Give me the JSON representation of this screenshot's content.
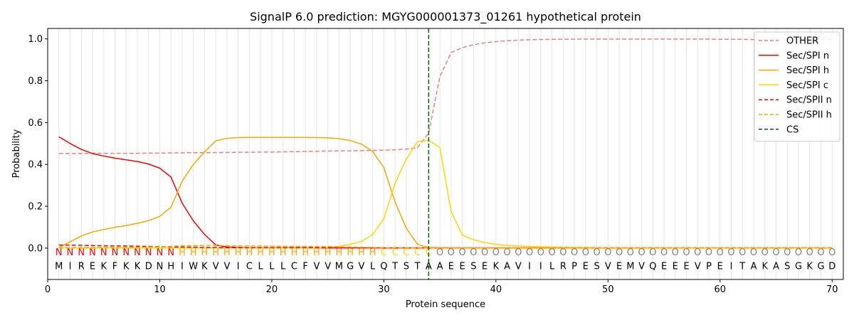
{
  "chart_data": {
    "type": "line",
    "title": "SignalP 6.0 prediction: MGYG000001373_01261 hypothetical protein",
    "xlabel": "Protein sequence",
    "ylabel": "Probability",
    "xlim": [
      0,
      71
    ],
    "ylim": [
      -0.15,
      1.05
    ],
    "grid": "vertical lines at each residue",
    "legend_position": "top-right",
    "x_ticks": [
      0,
      10,
      20,
      30,
      40,
      50,
      60,
      70
    ],
    "y_ticks": [
      0.0,
      0.2,
      0.4,
      0.6,
      0.8,
      1.0
    ],
    "x_tick_labels": [
      "0",
      "10",
      "20",
      "30",
      "40",
      "50",
      "60",
      "70"
    ],
    "y_tick_labels": [
      "0.0",
      "0.2",
      "0.4",
      "0.6",
      "0.8",
      "1.0"
    ],
    "sequence": [
      "M",
      "I",
      "R",
      "E",
      "K",
      "F",
      "K",
      "K",
      "D",
      "N",
      "H",
      "I",
      "W",
      "K",
      "V",
      "V",
      "I",
      "C",
      "L",
      "L",
      "L",
      "C",
      "F",
      "V",
      "V",
      "M",
      "G",
      "V",
      "L",
      "Q",
      "T",
      "S",
      "T",
      "A",
      "A",
      "E",
      "E",
      "S",
      "E",
      "K",
      "A",
      "V",
      "I",
      "I",
      "L",
      "R",
      "P",
      "E",
      "S",
      "V",
      "E",
      "M",
      "V",
      "Q",
      "E",
      "E",
      "E",
      "V",
      "P",
      "E",
      "I",
      "T",
      "A",
      "K",
      "A",
      "S",
      "G",
      "K",
      "G",
      "D"
    ],
    "region_labels": [
      "N",
      "N",
      "N",
      "N",
      "N",
      "N",
      "N",
      "N",
      "N",
      "N",
      "N",
      "H",
      "H",
      "H",
      "H",
      "H",
      "H",
      "H",
      "H",
      "H",
      "H",
      "H",
      "H",
      "H",
      "H",
      "H",
      "H",
      "H",
      "H",
      "C",
      "C",
      "C",
      "C",
      "C",
      "O",
      "O",
      "O",
      "O",
      "O",
      "O",
      "O",
      "O",
      "O",
      "O",
      "O",
      "O",
      "O",
      "O",
      "O",
      "O",
      "O",
      "O",
      "O",
      "O",
      "O",
      "O",
      "O",
      "O",
      "O",
      "O",
      "O",
      "O",
      "O",
      "O",
      "O",
      "O",
      "O",
      "O",
      "O",
      "O"
    ],
    "region_colors": {
      "N": "#ff0000",
      "H": "#ffa500",
      "C": "#ffd700",
      "O": "#808080"
    },
    "cs_position": 34,
    "series": [
      {
        "name": "OTHER",
        "color": "#f08080",
        "dash": "dashed",
        "values": [
          0.452,
          0.452,
          0.452,
          0.453,
          0.453,
          0.453,
          0.453,
          0.453,
          0.454,
          0.454,
          0.455,
          0.455,
          0.456,
          0.456,
          0.457,
          0.457,
          0.458,
          0.458,
          0.459,
          0.459,
          0.46,
          0.461,
          0.462,
          0.463,
          0.464,
          0.465,
          0.465,
          0.466,
          0.467,
          0.468,
          0.47,
          0.473,
          0.48,
          0.55,
          0.82,
          0.935,
          0.958,
          0.972,
          0.981,
          0.987,
          0.991,
          0.994,
          0.996,
          0.997,
          0.998,
          0.998,
          0.999,
          0.999,
          0.999,
          0.999,
          0.999,
          0.999,
          0.999,
          0.999,
          0.999,
          0.999,
          0.999,
          0.999,
          0.999,
          0.998,
          0.998,
          0.998,
          0.997,
          0.997,
          0.997,
          0.997,
          0.997,
          0.997,
          0.997,
          0.997
        ]
      },
      {
        "name": "Sec/SPI n",
        "color": "#ff0000",
        "dash": "solid",
        "values": [
          0.532,
          0.5,
          0.472,
          0.452,
          0.44,
          0.43,
          0.422,
          0.414,
          0.402,
          0.382,
          0.34,
          0.215,
          0.13,
          0.065,
          0.015,
          0.005,
          0.003,
          0.002,
          0.002,
          0.002,
          0.002,
          0.002,
          0.002,
          0.001,
          0.001,
          0.001,
          0.001,
          0.001,
          0.001,
          0.001,
          0.001,
          0.001,
          0.001,
          0.001,
          0.001,
          0.001,
          0.001,
          0.001,
          0.001,
          0.001,
          0.001,
          0.001,
          0.001,
          0.001,
          0.001,
          0.001,
          0.001,
          0.001,
          0.001,
          0.001,
          0.001,
          0.001,
          0.001,
          0.001,
          0.001,
          0.001,
          0.001,
          0.001,
          0.001,
          0.001,
          0.001,
          0.001,
          0.001,
          0.001,
          0.001,
          0.001,
          0.001,
          0.001,
          0.001,
          0.001
        ]
      },
      {
        "name": "Sec/SPI h",
        "color": "#ffa500",
        "dash": "solid",
        "values": [
          0.003,
          0.03,
          0.058,
          0.077,
          0.089,
          0.099,
          0.108,
          0.118,
          0.131,
          0.152,
          0.195,
          0.32,
          0.4,
          0.46,
          0.513,
          0.525,
          0.528,
          0.529,
          0.529,
          0.529,
          0.529,
          0.529,
          0.529,
          0.528,
          0.527,
          0.523,
          0.514,
          0.497,
          0.462,
          0.385,
          0.22,
          0.095,
          0.018,
          0.003,
          0.002,
          0.001,
          0.001,
          0.001,
          0.001,
          0.001,
          0.001,
          0.001,
          0.001,
          0.001,
          0.001,
          0.001,
          0.001,
          0.001,
          0.001,
          0.001,
          0.001,
          0.001,
          0.001,
          0.001,
          0.001,
          0.001,
          0.001,
          0.001,
          0.001,
          0.001,
          0.001,
          0.001,
          0.001,
          0.001,
          0.001,
          0.001,
          0.001,
          0.001,
          0.001,
          0.001
        ]
      },
      {
        "name": "Sec/SPI c",
        "color": "#ffd700",
        "dash": "solid",
        "values": [
          0.001,
          0.001,
          0.001,
          0.001,
          0.001,
          0.001,
          0.001,
          0.001,
          0.001,
          0.001,
          0.001,
          0.001,
          0.001,
          0.001,
          0.001,
          0.001,
          0.001,
          0.001,
          0.001,
          0.001,
          0.001,
          0.001,
          0.001,
          0.001,
          0.003,
          0.008,
          0.018,
          0.032,
          0.065,
          0.14,
          0.31,
          0.425,
          0.51,
          0.515,
          0.48,
          0.175,
          0.062,
          0.04,
          0.027,
          0.018,
          0.013,
          0.01,
          0.008,
          0.006,
          0.005,
          0.004,
          0.003,
          0.003,
          0.002,
          0.002,
          0.002,
          0.002,
          0.002,
          0.001,
          0.001,
          0.001,
          0.001,
          0.001,
          0.001,
          0.001,
          0.001,
          0.001,
          0.001,
          0.001,
          0.001,
          0.001,
          0.001,
          0.001,
          0.001,
          0.001
        ]
      },
      {
        "name": "Sec/SPII n",
        "color": "#ff0000",
        "dash": "dashed",
        "values": [
          0.015,
          0.014,
          0.013,
          0.012,
          0.011,
          0.01,
          0.01,
          0.009,
          0.008,
          0.007,
          0.006,
          0.005,
          0.004,
          0.003,
          0.003,
          0.002,
          0.002,
          0.002,
          0.002,
          0.002,
          0.002,
          0.002,
          0.002,
          0.002,
          0.002,
          0.002,
          0.002,
          0.002,
          0.002,
          0.002,
          0.002,
          0.001,
          0.001,
          0.001,
          0.001,
          0.001,
          0.001,
          0.001,
          0.001,
          0.001,
          0.001,
          0.001,
          0.001,
          0.001,
          0.001,
          0.001,
          0.001,
          0.001,
          0.001,
          0.001,
          0.001,
          0.001,
          0.001,
          0.001,
          0.001,
          0.001,
          0.001,
          0.001,
          0.001,
          0.001,
          0.001,
          0.001,
          0.001,
          0.001,
          0.001,
          0.001,
          0.001,
          0.001,
          0.001,
          0.001
        ]
      },
      {
        "name": "Sec/SPII h",
        "color": "#ffa500",
        "dash": "dashed",
        "values": [
          0.002,
          0.002,
          0.003,
          0.003,
          0.003,
          0.003,
          0.004,
          0.004,
          0.005,
          0.006,
          0.008,
          0.011,
          0.012,
          0.013,
          0.013,
          0.012,
          0.011,
          0.01,
          0.01,
          0.009,
          0.009,
          0.008,
          0.008,
          0.007,
          0.007,
          0.006,
          0.005,
          0.004,
          0.003,
          0.002,
          0.002,
          0.001,
          0.001,
          0.001,
          0.001,
          0.001,
          0.001,
          0.001,
          0.001,
          0.001,
          0.001,
          0.001,
          0.001,
          0.001,
          0.001,
          0.001,
          0.001,
          0.001,
          0.001,
          0.001,
          0.001,
          0.001,
          0.001,
          0.001,
          0.001,
          0.001,
          0.001,
          0.001,
          0.001,
          0.001,
          0.001,
          0.001,
          0.001,
          0.001,
          0.001,
          0.001,
          0.001,
          0.001,
          0.001,
          0.001
        ]
      }
    ],
    "legend": [
      {
        "label": "OTHER",
        "color": "#f08080",
        "dash": "dashed"
      },
      {
        "label": "Sec/SPI n",
        "color": "#ff0000",
        "dash": "solid"
      },
      {
        "label": "Sec/SPI h",
        "color": "#ffa500",
        "dash": "solid"
      },
      {
        "label": "Sec/SPI c",
        "color": "#ffd700",
        "dash": "solid"
      },
      {
        "label": "Sec/SPII n",
        "color": "#ff0000",
        "dash": "dashed"
      },
      {
        "label": "Sec/SPII h",
        "color": "#ffa500",
        "dash": "dashed"
      },
      {
        "label": "CS",
        "color": "#006400",
        "dash": "dashed"
      }
    ]
  }
}
